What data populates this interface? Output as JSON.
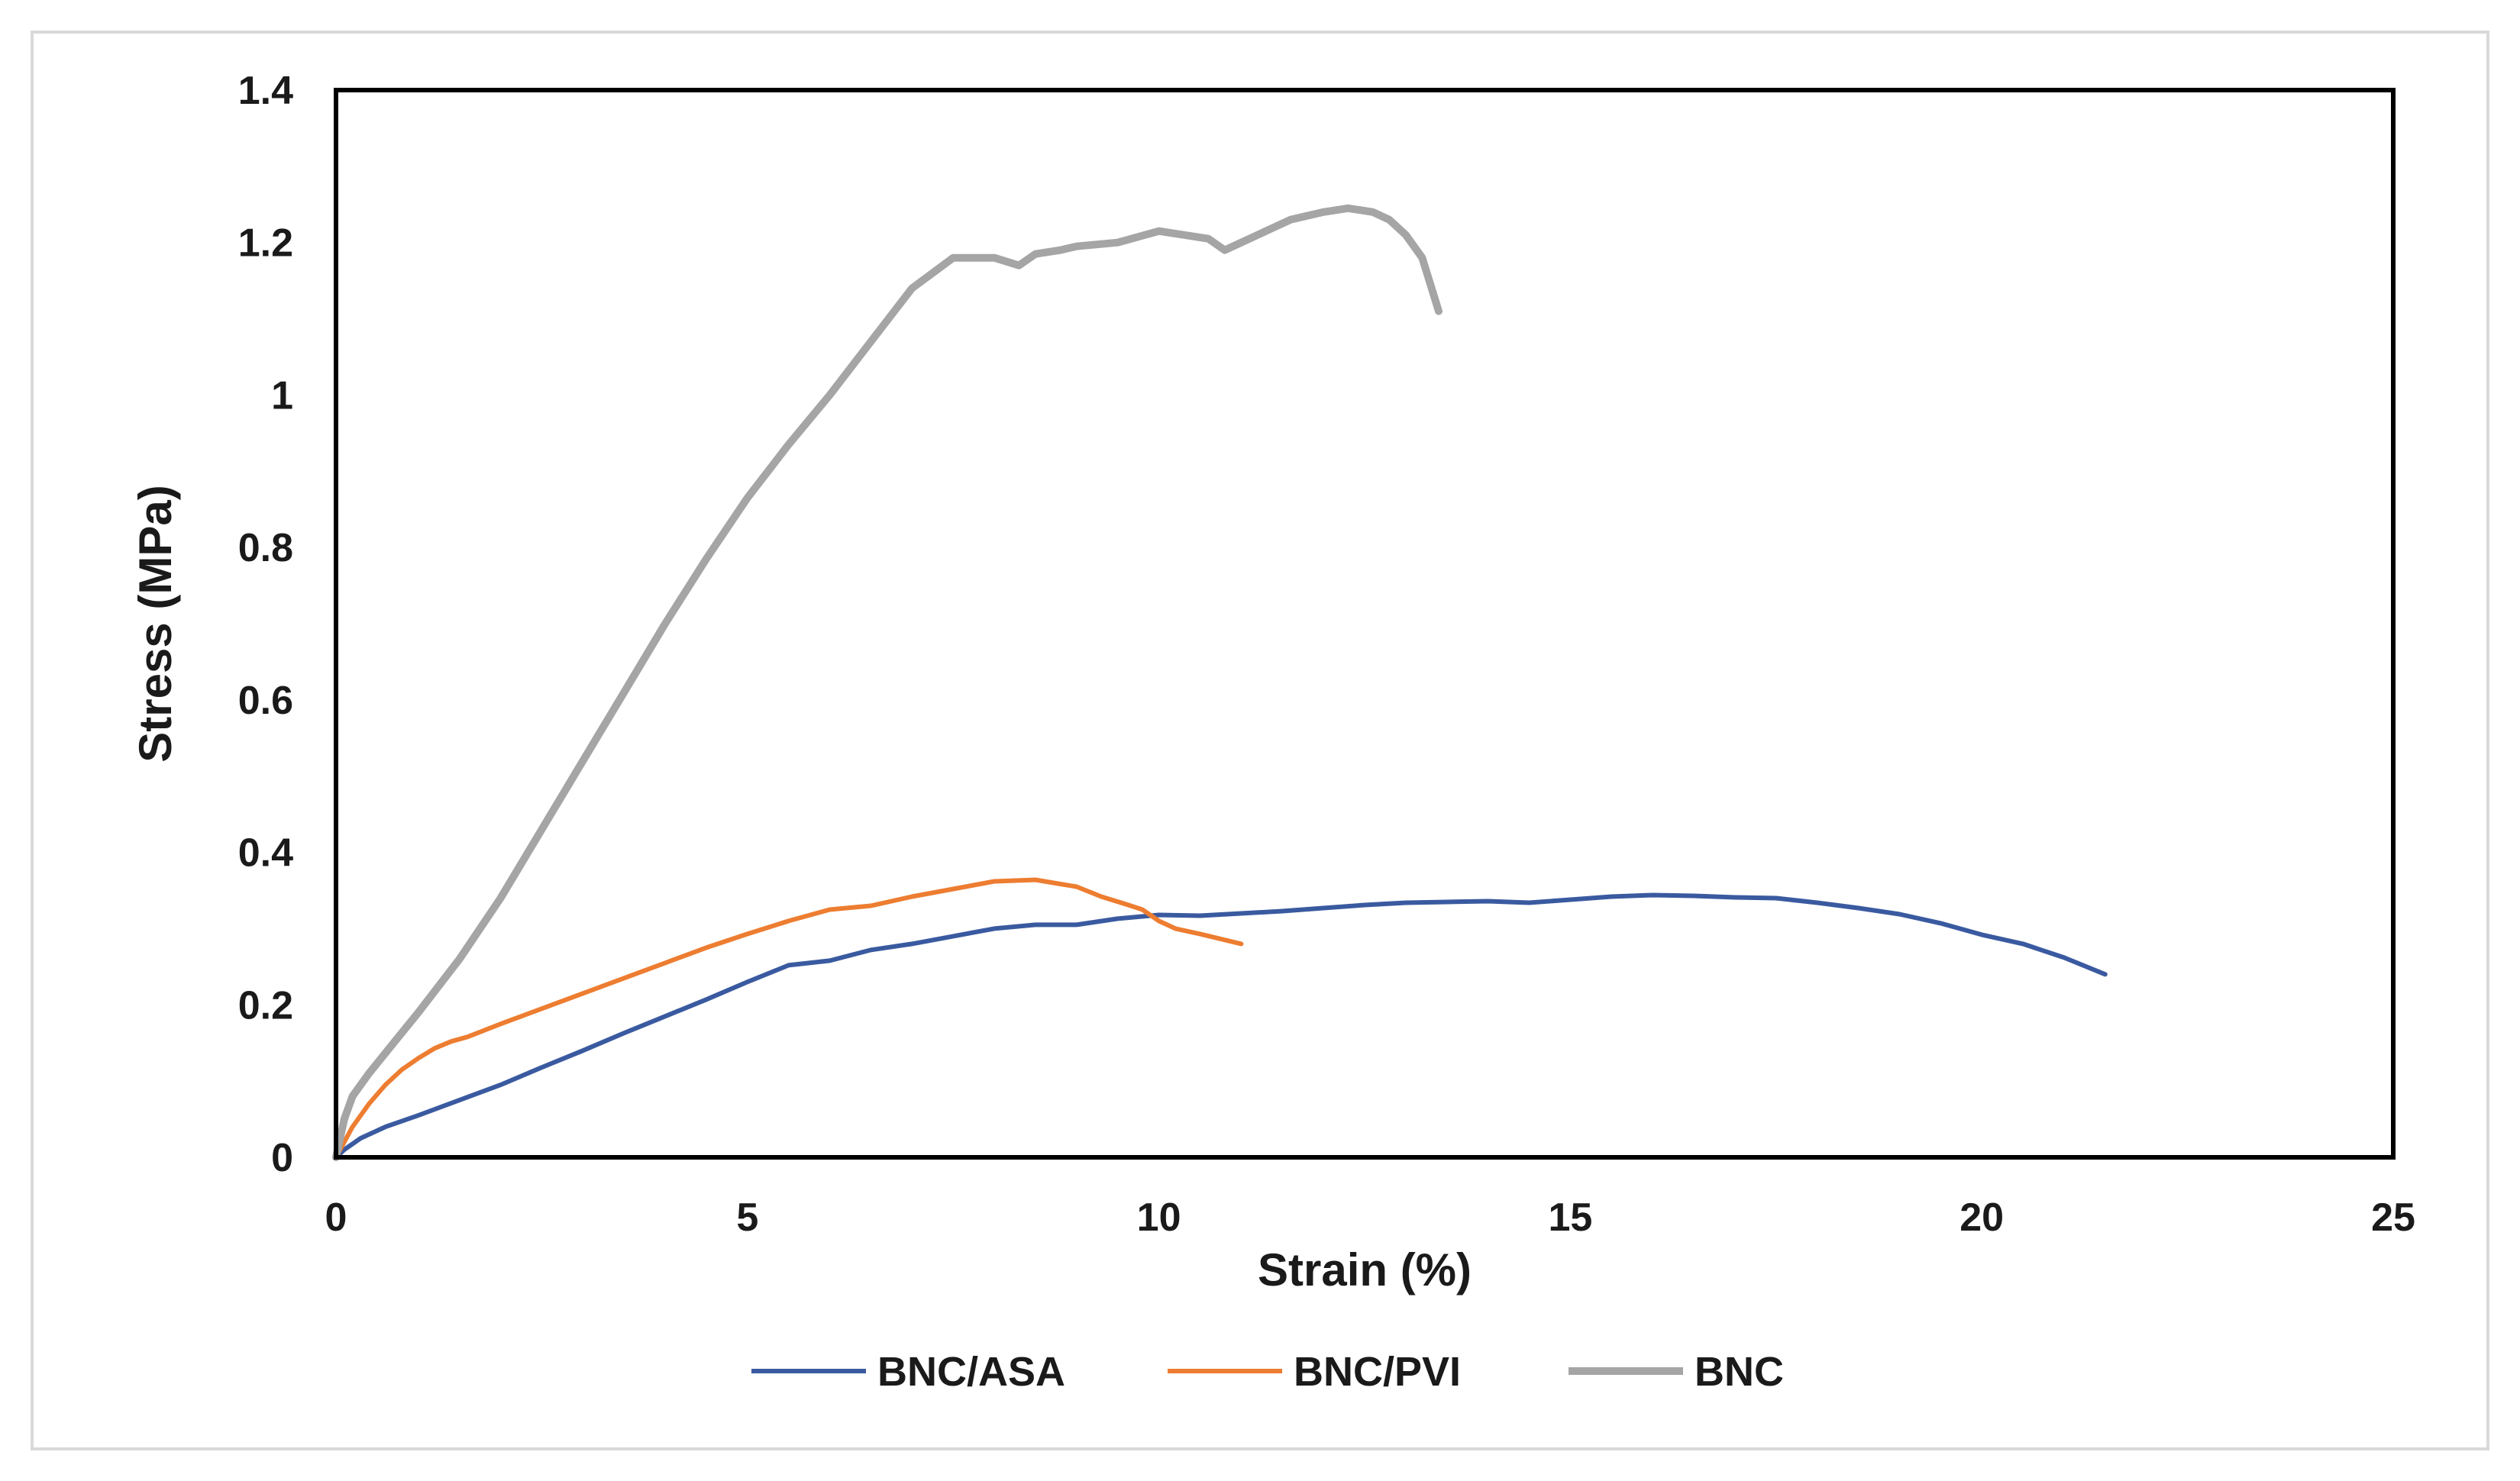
{
  "chart_data": {
    "type": "line",
    "title": "",
    "xlabel": "Strain (%)",
    "ylabel": "Stress (MPa)",
    "xlim": [
      0,
      25
    ],
    "ylim": [
      0,
      1.4
    ],
    "x_ticks": [
      0,
      5,
      10,
      15,
      20,
      25
    ],
    "x_tick_labels": [
      "0",
      "5",
      "10",
      "15",
      "20",
      "25"
    ],
    "y_ticks": [
      0,
      0.2,
      0.4,
      0.6,
      0.8,
      1,
      1.2,
      1.4
    ],
    "y_tick_labels": [
      "0",
      "0.2",
      "0.4",
      "0.6",
      "0.8",
      "1",
      "1.2",
      "1.4"
    ],
    "grid": false,
    "legend_position": "bottom",
    "series": [
      {
        "name": "BNC/ASA",
        "color": "#3a5aa0",
        "x": [
          0,
          0.1,
          0.3,
          0.6,
          1.0,
          1.5,
          2.0,
          2.5,
          3.0,
          3.5,
          4.0,
          4.5,
          5.0,
          5.5,
          6.0,
          6.5,
          7.0,
          7.5,
          8.0,
          8.5,
          9.0,
          9.5,
          10.0,
          10.5,
          11.0,
          11.5,
          12.0,
          12.5,
          13.0,
          13.5,
          14.0,
          14.5,
          15.0,
          15.5,
          16.0,
          16.5,
          17.0,
          17.5,
          18.0,
          18.5,
          19.0,
          19.5,
          20.0,
          20.5,
          21.0,
          21.5
        ],
        "y": [
          0,
          0.01,
          0.025,
          0.04,
          0.055,
          0.075,
          0.095,
          0.118,
          0.14,
          0.163,
          0.185,
          0.207,
          0.23,
          0.252,
          0.258,
          0.272,
          0.28,
          0.29,
          0.3,
          0.305,
          0.305,
          0.313,
          0.318,
          0.317,
          0.32,
          0.323,
          0.327,
          0.331,
          0.334,
          0.335,
          0.336,
          0.334,
          0.338,
          0.342,
          0.344,
          0.343,
          0.341,
          0.34,
          0.334,
          0.327,
          0.319,
          0.307,
          0.292,
          0.28,
          0.262,
          0.24
        ]
      },
      {
        "name": "BNC/PVI",
        "color": "#ed7d31",
        "x": [
          0,
          0.1,
          0.2,
          0.4,
          0.6,
          0.8,
          1.0,
          1.2,
          1.4,
          1.6,
          2.0,
          2.5,
          3.0,
          3.5,
          4.0,
          4.5,
          5.0,
          5.5,
          6.0,
          6.5,
          7.0,
          7.5,
          8.0,
          8.5,
          9.0,
          9.3,
          9.6,
          9.8,
          10.0,
          10.2,
          10.5,
          11.0
        ],
        "y": [
          0,
          0.02,
          0.04,
          0.07,
          0.095,
          0.115,
          0.13,
          0.143,
          0.152,
          0.158,
          0.175,
          0.195,
          0.215,
          0.235,
          0.255,
          0.275,
          0.293,
          0.31,
          0.325,
          0.33,
          0.342,
          0.352,
          0.362,
          0.364,
          0.355,
          0.342,
          0.332,
          0.325,
          0.31,
          0.3,
          0.293,
          0.28
        ]
      },
      {
        "name": "BNC",
        "color": "#a5a5a5",
        "x": [
          0,
          0.1,
          0.2,
          0.4,
          0.7,
          1.0,
          1.5,
          2.0,
          2.5,
          3.0,
          3.5,
          4.0,
          4.5,
          5.0,
          5.5,
          6.0,
          6.5,
          7.0,
          7.5,
          8.0,
          8.3,
          8.5,
          8.8,
          9.0,
          9.5,
          10.0,
          10.3,
          10.6,
          10.8,
          11.0,
          11.3,
          11.6,
          12.0,
          12.3,
          12.6,
          12.8,
          13.0,
          13.2,
          13.4
        ],
        "y": [
          0,
          0.05,
          0.08,
          0.11,
          0.15,
          0.19,
          0.26,
          0.34,
          0.43,
          0.52,
          0.61,
          0.7,
          0.785,
          0.865,
          0.935,
          1.0,
          1.07,
          1.14,
          1.18,
          1.18,
          1.17,
          1.185,
          1.19,
          1.195,
          1.2,
          1.215,
          1.21,
          1.205,
          1.19,
          1.2,
          1.215,
          1.23,
          1.24,
          1.245,
          1.24,
          1.23,
          1.21,
          1.18,
          1.11
        ]
      }
    ]
  }
}
